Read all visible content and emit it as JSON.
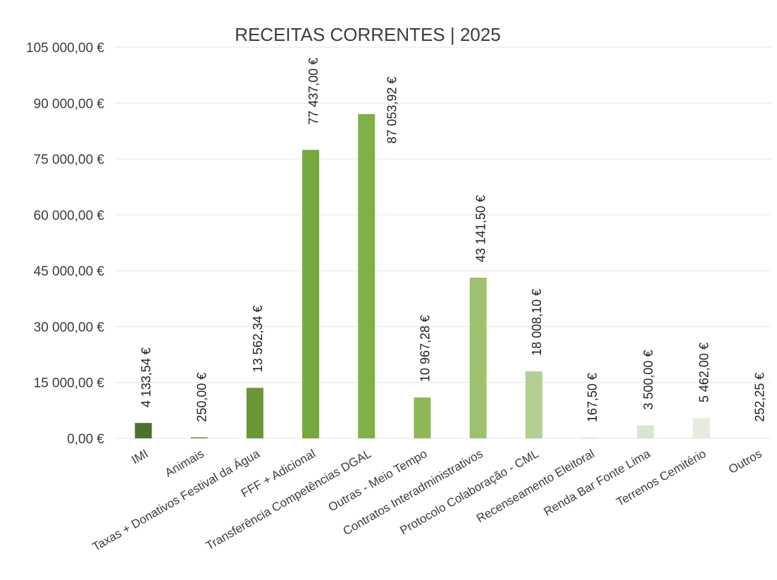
{
  "chart_data": {
    "type": "bar",
    "title": "RECEITAS CORRENTES | 2025",
    "xlabel": "",
    "ylabel": "",
    "ylim": [
      0,
      105000
    ],
    "yticks": [
      0,
      15000,
      30000,
      45000,
      60000,
      75000,
      90000,
      105000
    ],
    "ytick_labels": [
      "0,00 €",
      "15 000,00 €",
      "30 000,00 €",
      "45 000,00 €",
      "60 000,00 €",
      "75 000,00 €",
      "90 000,00 €",
      "105 000,00 €"
    ],
    "grid": true,
    "legend": "none",
    "categories": [
      "IMI",
      "Animais",
      "Taxas + Donativos Festival da Água",
      "FFF + Adicional",
      "Transferência Competências DGAL",
      "Outras - Meio Tempo",
      "Contratos Interadministrativos",
      "Protocolo Colaboração - CML",
      "Recenseamento Eleitoral",
      "Renda Bar Fonte Lima",
      "Terrenos Cemitério",
      "Outros"
    ],
    "values": [
      4133.54,
      250.0,
      13562.34,
      77437.0,
      87053.92,
      10967.28,
      43141.5,
      18008.1,
      167.5,
      3500.0,
      5462.0,
      252.25
    ],
    "data_labels": [
      "4 133,54 €",
      "250,00 €",
      "13 562,34 €",
      "77 437,00 €",
      "87 053,92 €",
      "10 967,28 €",
      "43 141,50 €",
      "18 008,10 €",
      "167,50 €",
      "3 500,00 €",
      "5 462,00 €",
      "252,25 €"
    ],
    "bar_colors": [
      "#4f6f2b",
      "#5d832f",
      "#6a9636",
      "#75a83d",
      "#7fb146",
      "#8cb956",
      "#9cc26d",
      "#b2d094",
      "#c6dbb2",
      "#d9e6cf",
      "#e4ecdf",
      "#eef1ec"
    ]
  }
}
